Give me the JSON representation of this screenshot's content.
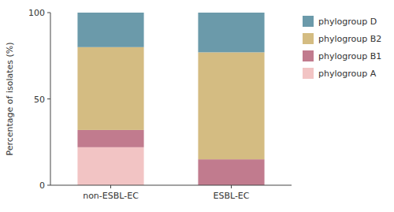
{
  "chart_data": {
    "type": "bar",
    "stacked": true,
    "categories": [
      "non-ESBL-EC",
      "ESBL-EC"
    ],
    "series": [
      {
        "name": "phylogroup A",
        "color": "#f2c4c4",
        "values": [
          22,
          0
        ]
      },
      {
        "name": "phylogroup B1",
        "color": "#c17b8e",
        "values": [
          10,
          15
        ]
      },
      {
        "name": "phylogroup B2",
        "color": "#d4bc82",
        "values": [
          48,
          62
        ]
      },
      {
        "name": "phylogroup D",
        "color": "#6b9aaa",
        "values": [
          20,
          23
        ]
      }
    ],
    "ylabel": "Percentage of isolates (%)",
    "ylim": [
      0,
      100
    ],
    "yticks": [
      0,
      50,
      100
    ],
    "grid": false,
    "legend": "right"
  }
}
